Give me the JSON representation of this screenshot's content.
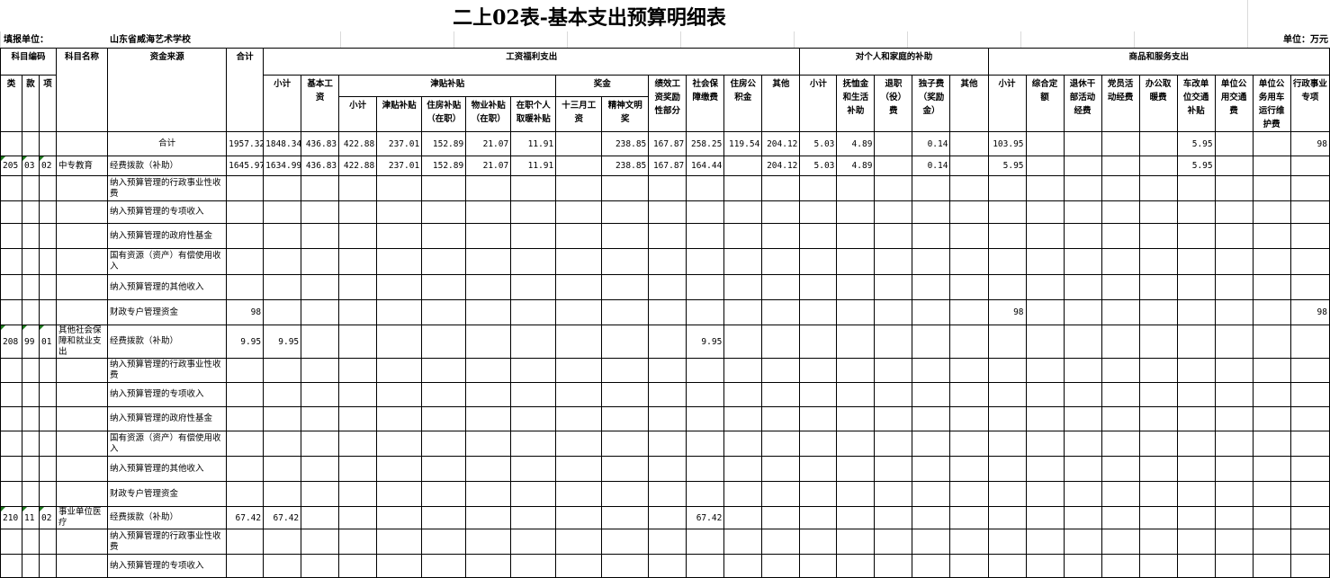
{
  "title": "二上02表-基本支出预算明细表",
  "fill_unit_label": "填报单位：",
  "fill_unit_value": "山东省威海艺术学校",
  "unit": "单位：万元",
  "headers": {
    "code": "科目编码",
    "name": "科目名称",
    "source": "资金来源",
    "total": "合计",
    "lei": "类",
    "kuan": "款",
    "xiang": "项",
    "wage_group": "工资福利支出",
    "personal_group": "对个人和家庭的补助",
    "goods_group": "商品和服务支出",
    "wage_subtotal": "小计",
    "basic_wage": "基本工资",
    "allowance_group": "津贴补贴",
    "bonus_group": "奖金",
    "performance": "绩效工资奖励性部分",
    "social_security": "社会保障缴费",
    "housing_fund": "住房公积金",
    "wage_other": "其他",
    "allow_subtotal": "小计",
    "allow_allowance": "津贴补贴",
    "allow_housing": "住房补贴（在职）",
    "allow_property": "物业补贴（在职）",
    "allow_heating": "在职个人取暖补贴",
    "bonus_13": "十三月工资",
    "bonus_civil": "精神文明奖",
    "p_subtotal": "小计",
    "p_pension": "抚恤金和生活补助",
    "p_retire": "退职（役）费",
    "p_onechild": "独子费（奖励金）",
    "p_other": "其他",
    "g_subtotal": "小计",
    "g_quota": "综合定额",
    "g_retired": "退休干部活动经费",
    "g_party": "党员活动经费",
    "g_heating": "办公取暖费",
    "g_car": "车改单位交通补贴",
    "g_transport": "单位公用交通费",
    "g_official_car": "单位公务用车运行维护费",
    "g_admin": "行政事业专项"
  },
  "rows": [
    {
      "lei": "",
      "kuan": "",
      "xiang": "",
      "name": "",
      "source": "合计",
      "total_row": true,
      "values": [
        "1957.32",
        "1848.34",
        "436.83",
        "422.88",
        "237.01",
        "152.89",
        "21.07",
        "11.91",
        "",
        "238.85",
        "167.87",
        "258.25",
        "119.54",
        "204.12",
        "5.03",
        "4.89",
        "",
        "0.14",
        "",
        "103.95",
        "",
        "",
        "",
        "",
        "5.95",
        "",
        "",
        "98"
      ]
    },
    {
      "lei": "205",
      "kuan": "03",
      "xiang": "02",
      "name": "中专教育",
      "source": "经费拨款（补助）",
      "values": [
        "1645.97",
        "1634.99",
        "436.83",
        "422.88",
        "237.01",
        "152.89",
        "21.07",
        "11.91",
        "",
        "238.85",
        "167.87",
        "164.44",
        "",
        "204.12",
        "5.03",
        "4.89",
        "",
        "0.14",
        "",
        "5.95",
        "",
        "",
        "",
        "",
        "5.95",
        "",
        "",
        ""
      ]
    },
    {
      "source": "纳入预算管理的行政事业性收费",
      "values": []
    },
    {
      "source": "纳入预算管理的专项收入",
      "values": []
    },
    {
      "source": "纳入预算管理的政府性基金",
      "values": []
    },
    {
      "source": "国有资源（资产）有偿使用收入",
      "values": []
    },
    {
      "source": "纳入预算管理的其他收入",
      "values": []
    },
    {
      "source": "财政专户管理资金",
      "values": [
        "98",
        "",
        "",
        "",
        "",
        "",
        "",
        "",
        "",
        "",
        "",
        "",
        "",
        "",
        "",
        "",
        "",
        "",
        "",
        "98",
        "",
        "",
        "",
        "",
        "",
        "",
        "",
        "98"
      ]
    },
    {
      "lei": "208",
      "kuan": "99",
      "xiang": "01",
      "name": "其他社会保障和就业支出",
      "source": "经费拨款（补助）",
      "values": [
        "9.95",
        "9.95",
        "",
        "",
        "",
        "",
        "",
        "",
        "",
        "",
        "",
        "9.95"
      ]
    },
    {
      "source": "纳入预算管理的行政事业性收费",
      "values": []
    },
    {
      "source": "纳入预算管理的专项收入",
      "values": []
    },
    {
      "source": "纳入预算管理的政府性基金",
      "values": []
    },
    {
      "source": "国有资源（资产）有偿使用收入",
      "values": []
    },
    {
      "source": "纳入预算管理的其他收入",
      "values": []
    },
    {
      "source": "财政专户管理资金",
      "values": []
    },
    {
      "lei": "210",
      "kuan": "11",
      "xiang": "02",
      "name": "事业单位医疗",
      "source": "经费拨款（补助）",
      "values": [
        "67.42",
        "67.42",
        "",
        "",
        "",
        "",
        "",
        "",
        "",
        "",
        "",
        "67.42"
      ]
    },
    {
      "source": "纳入预算管理的行政事业性收费",
      "values": []
    },
    {
      "source": "纳入预算管理的专项收入",
      "values": []
    }
  ]
}
